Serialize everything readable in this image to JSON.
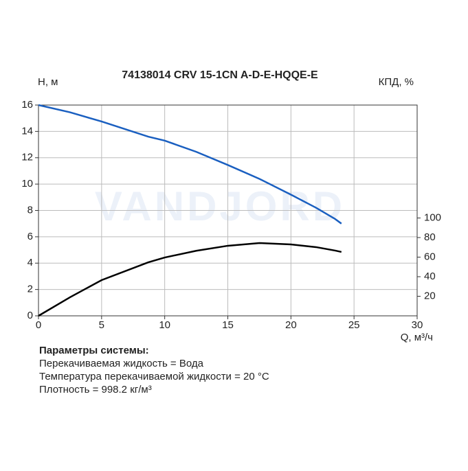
{
  "chart_data": {
    "type": "line",
    "title": "74138014 CRV 15-1CN A-D-E-HQQE-E",
    "watermark": "VANDJORD",
    "y_label": "H, м",
    "y2_label": "КПД, %",
    "x_label": "Q, м³/ч",
    "x": [
      0,
      2.5,
      5,
      8.7,
      10,
      12.5,
      15,
      17.5,
      20,
      22,
      23.5,
      24
    ],
    "series": [
      {
        "color": "#1a5fc0",
        "values": [
          16.0,
          15.45,
          14.75,
          13.6,
          13.3,
          12.45,
          11.45,
          10.4,
          9.2,
          8.2,
          7.35,
          7.0
        ]
      },
      {
        "color": "#000000",
        "axis": "y2",
        "values": [
          0,
          19,
          36.5,
          54.7,
          59.6,
          66.5,
          71.6,
          74.4,
          73,
          70.2,
          66.7,
          65.3
        ]
      }
    ],
    "xlim": [
      0,
      30
    ],
    "xticks": [
      0,
      5,
      10,
      15,
      20,
      25,
      30
    ],
    "ylim": [
      0,
      16
    ],
    "yticks": [
      0,
      2,
      4,
      6,
      8,
      10,
      12,
      14,
      16
    ],
    "y2lim": [
      0,
      215.4
    ],
    "y2ticks": [
      20,
      40,
      60,
      80,
      100
    ],
    "grid": true
  },
  "parameters": {
    "title": "Параметры системы:",
    "lines": [
      "Перекачиваемая жидкость = Вода",
      "Температура перекачиваемой жидкости = 20 °C",
      "Плотность = 998.2 кг/м³"
    ]
  }
}
